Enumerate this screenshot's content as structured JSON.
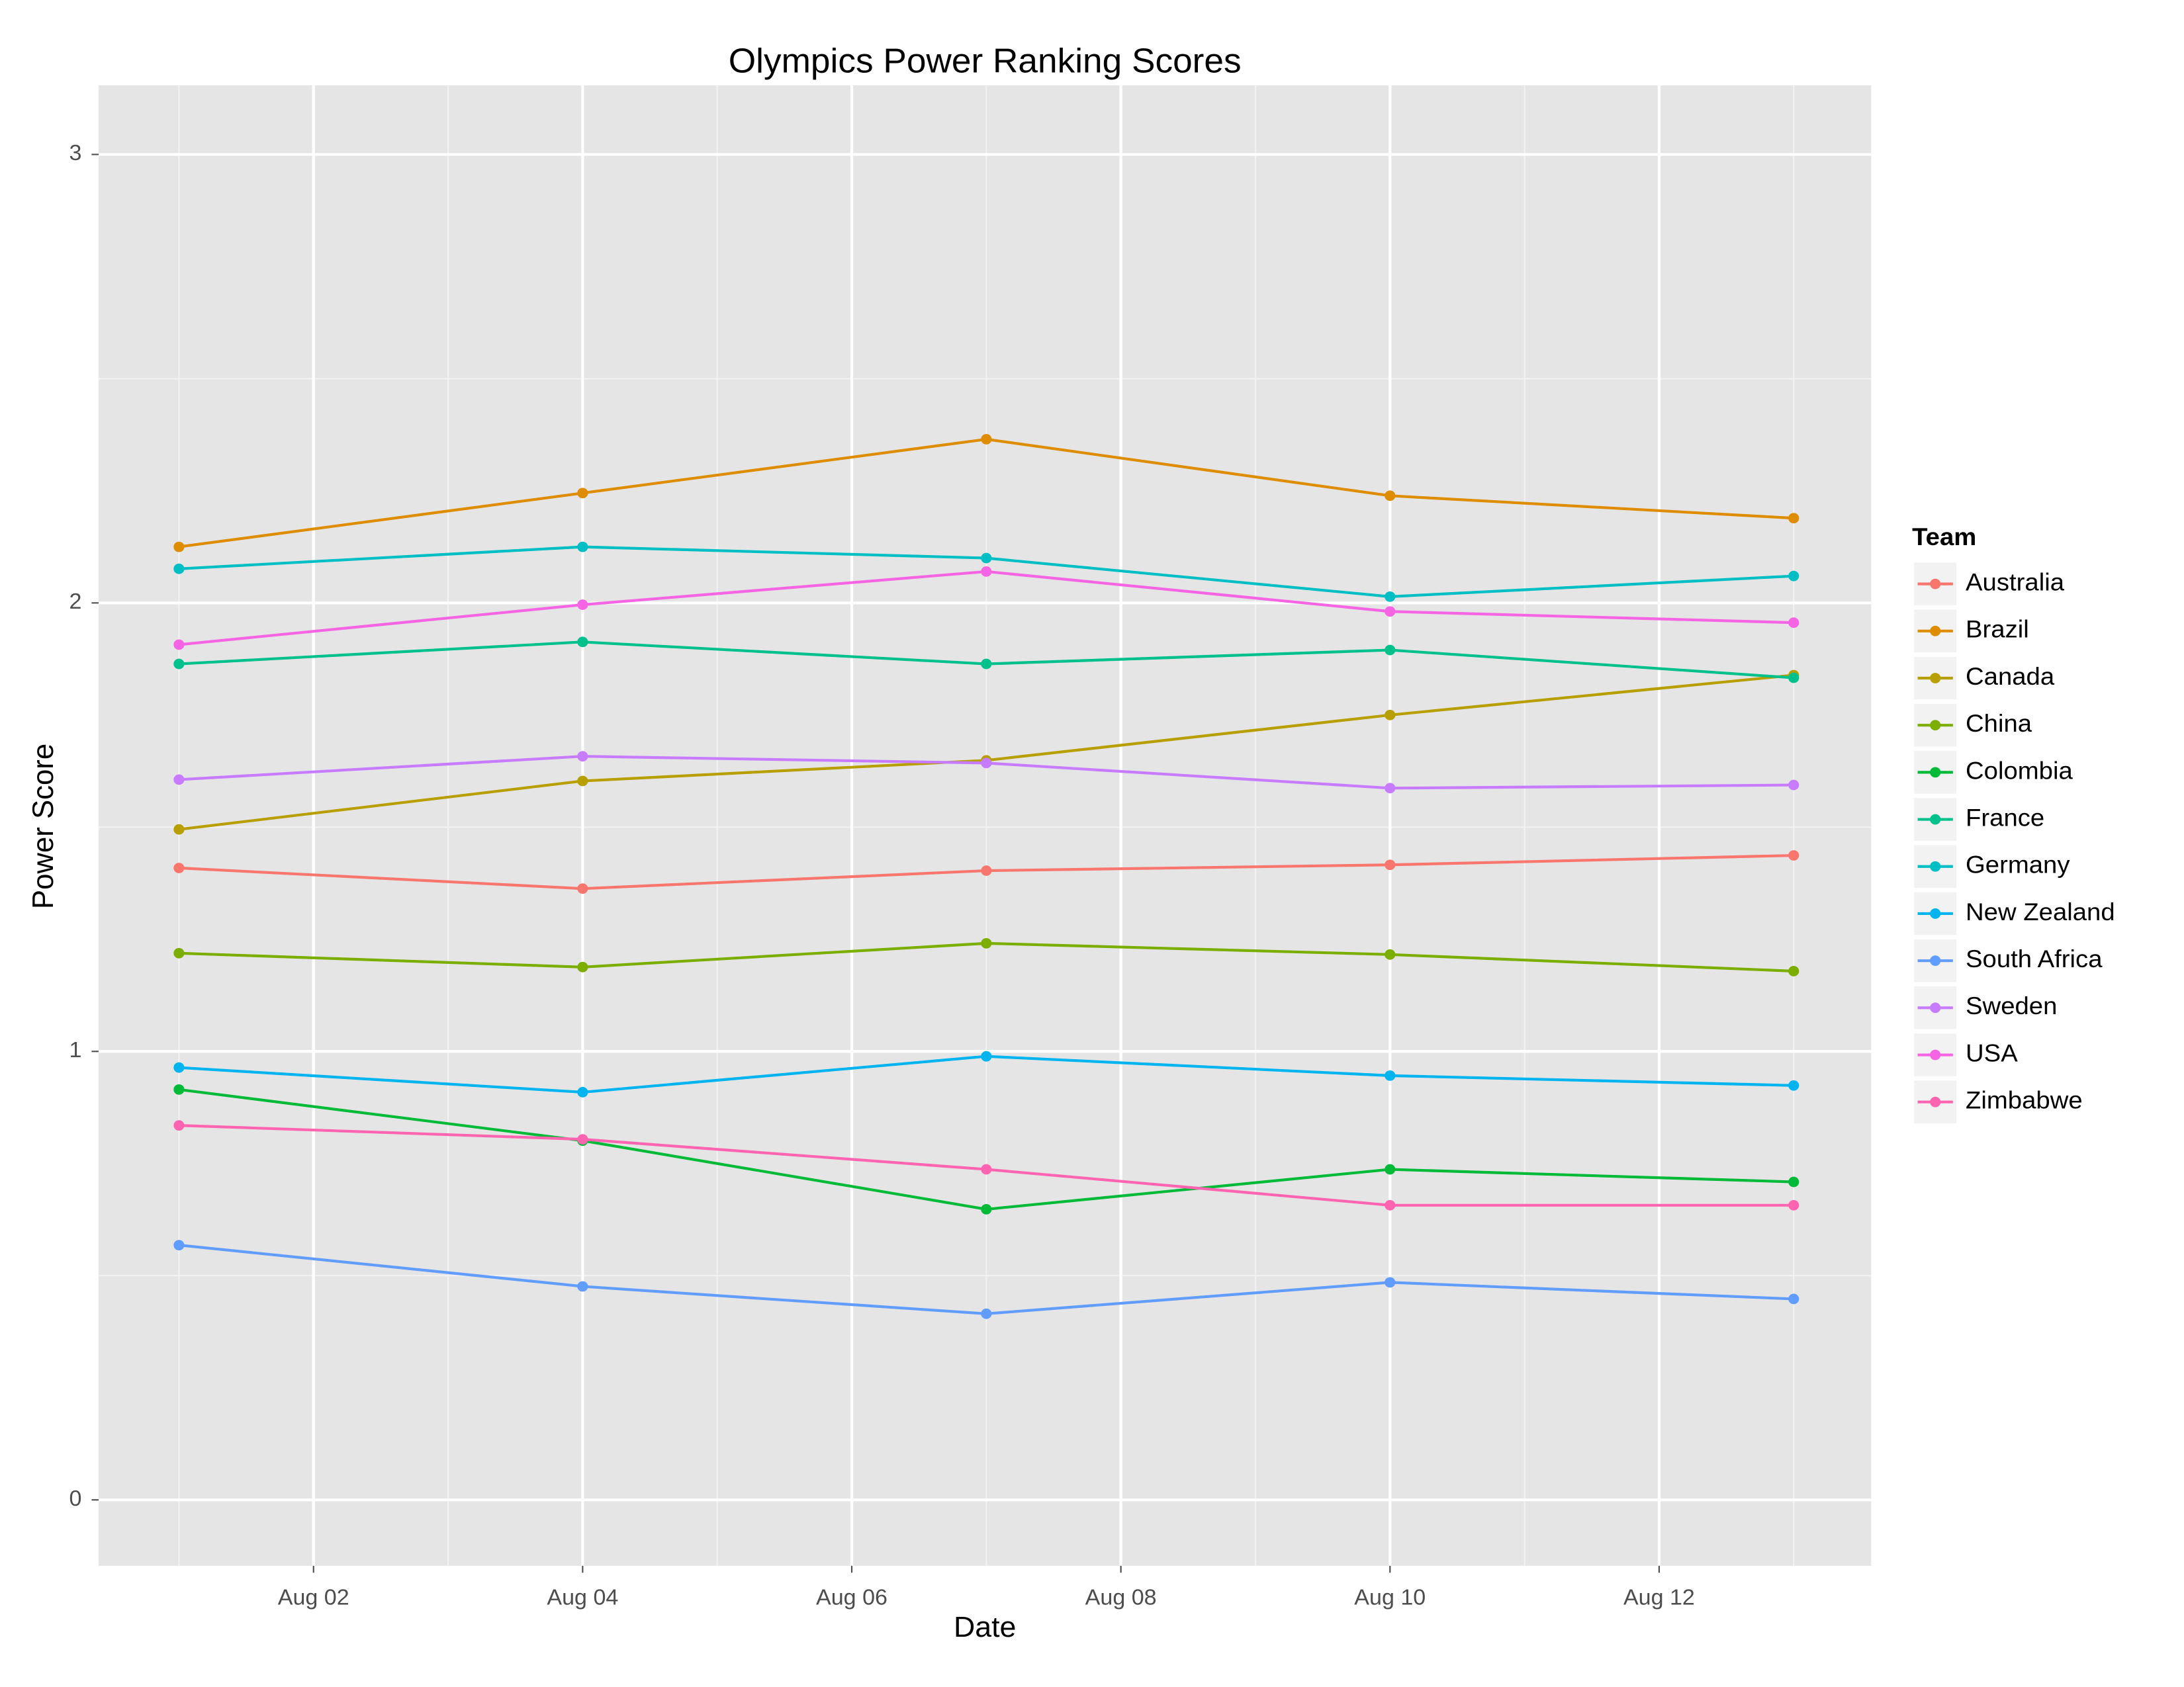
{
  "chart_data": {
    "type": "line",
    "title": "Olympics Power Ranking Scores",
    "x_label": "Date",
    "y_label": "Power Score",
    "legend_title": "Team",
    "legend_position": "right",
    "x": [
      1,
      4,
      7,
      10,
      13
    ],
    "xlim": [
      0.403,
      13.576
    ],
    "xticks": [
      {
        "value": 2,
        "label": "Aug 02"
      },
      {
        "value": 4,
        "label": "Aug 04"
      },
      {
        "value": 6,
        "label": "Aug 06"
      },
      {
        "value": 8,
        "label": "Aug 08"
      },
      {
        "value": 10,
        "label": "Aug 10"
      },
      {
        "value": 12,
        "label": "Aug 12"
      }
    ],
    "x_minor_ticks": [
      1,
      3,
      5,
      7,
      9,
      11,
      13
    ],
    "ylim": [
      -0.147,
      3.154
    ],
    "yticks": [
      0,
      1,
      2,
      3
    ],
    "y_minor_ticks": [
      0.5,
      1.5,
      2.5
    ],
    "grid": true,
    "series": [
      {
        "name": "Australia",
        "color": "#F8766D",
        "values": [
          1.409,
          1.363,
          1.403,
          1.416,
          1.437
        ]
      },
      {
        "name": "Brazil",
        "color": "#DE8C00",
        "values": [
          2.125,
          2.245,
          2.365,
          2.239,
          2.189
        ]
      },
      {
        "name": "Canada",
        "color": "#B79F00",
        "values": [
          1.495,
          1.603,
          1.649,
          1.75,
          1.839
        ]
      },
      {
        "name": "China",
        "color": "#7CAE00",
        "values": [
          1.219,
          1.188,
          1.241,
          1.216,
          1.179
        ]
      },
      {
        "name": "Colombia",
        "color": "#00BA38",
        "values": [
          0.915,
          0.801,
          0.648,
          0.737,
          0.709
        ]
      },
      {
        "name": "France",
        "color": "#00C08B",
        "values": [
          1.864,
          1.913,
          1.864,
          1.895,
          1.833
        ]
      },
      {
        "name": "Germany",
        "color": "#00BFC4",
        "values": [
          2.076,
          2.125,
          2.1,
          2.014,
          2.06
        ]
      },
      {
        "name": "New Zealand",
        "color": "#00B4F0",
        "values": [
          0.964,
          0.909,
          0.989,
          0.946,
          0.924
        ]
      },
      {
        "name": "South Africa",
        "color": "#619CFF",
        "values": [
          0.568,
          0.476,
          0.415,
          0.485,
          0.448
        ]
      },
      {
        "name": "Sweden",
        "color": "#C77CFF",
        "values": [
          1.606,
          1.658,
          1.643,
          1.587,
          1.594
        ]
      },
      {
        "name": "USA",
        "color": "#F564E3",
        "values": [
          1.907,
          1.996,
          2.07,
          1.981,
          1.956
        ]
      },
      {
        "name": "Zimbabwe",
        "color": "#FF64B0",
        "values": [
          0.835,
          0.804,
          0.737,
          0.657,
          0.657
        ]
      }
    ]
  }
}
